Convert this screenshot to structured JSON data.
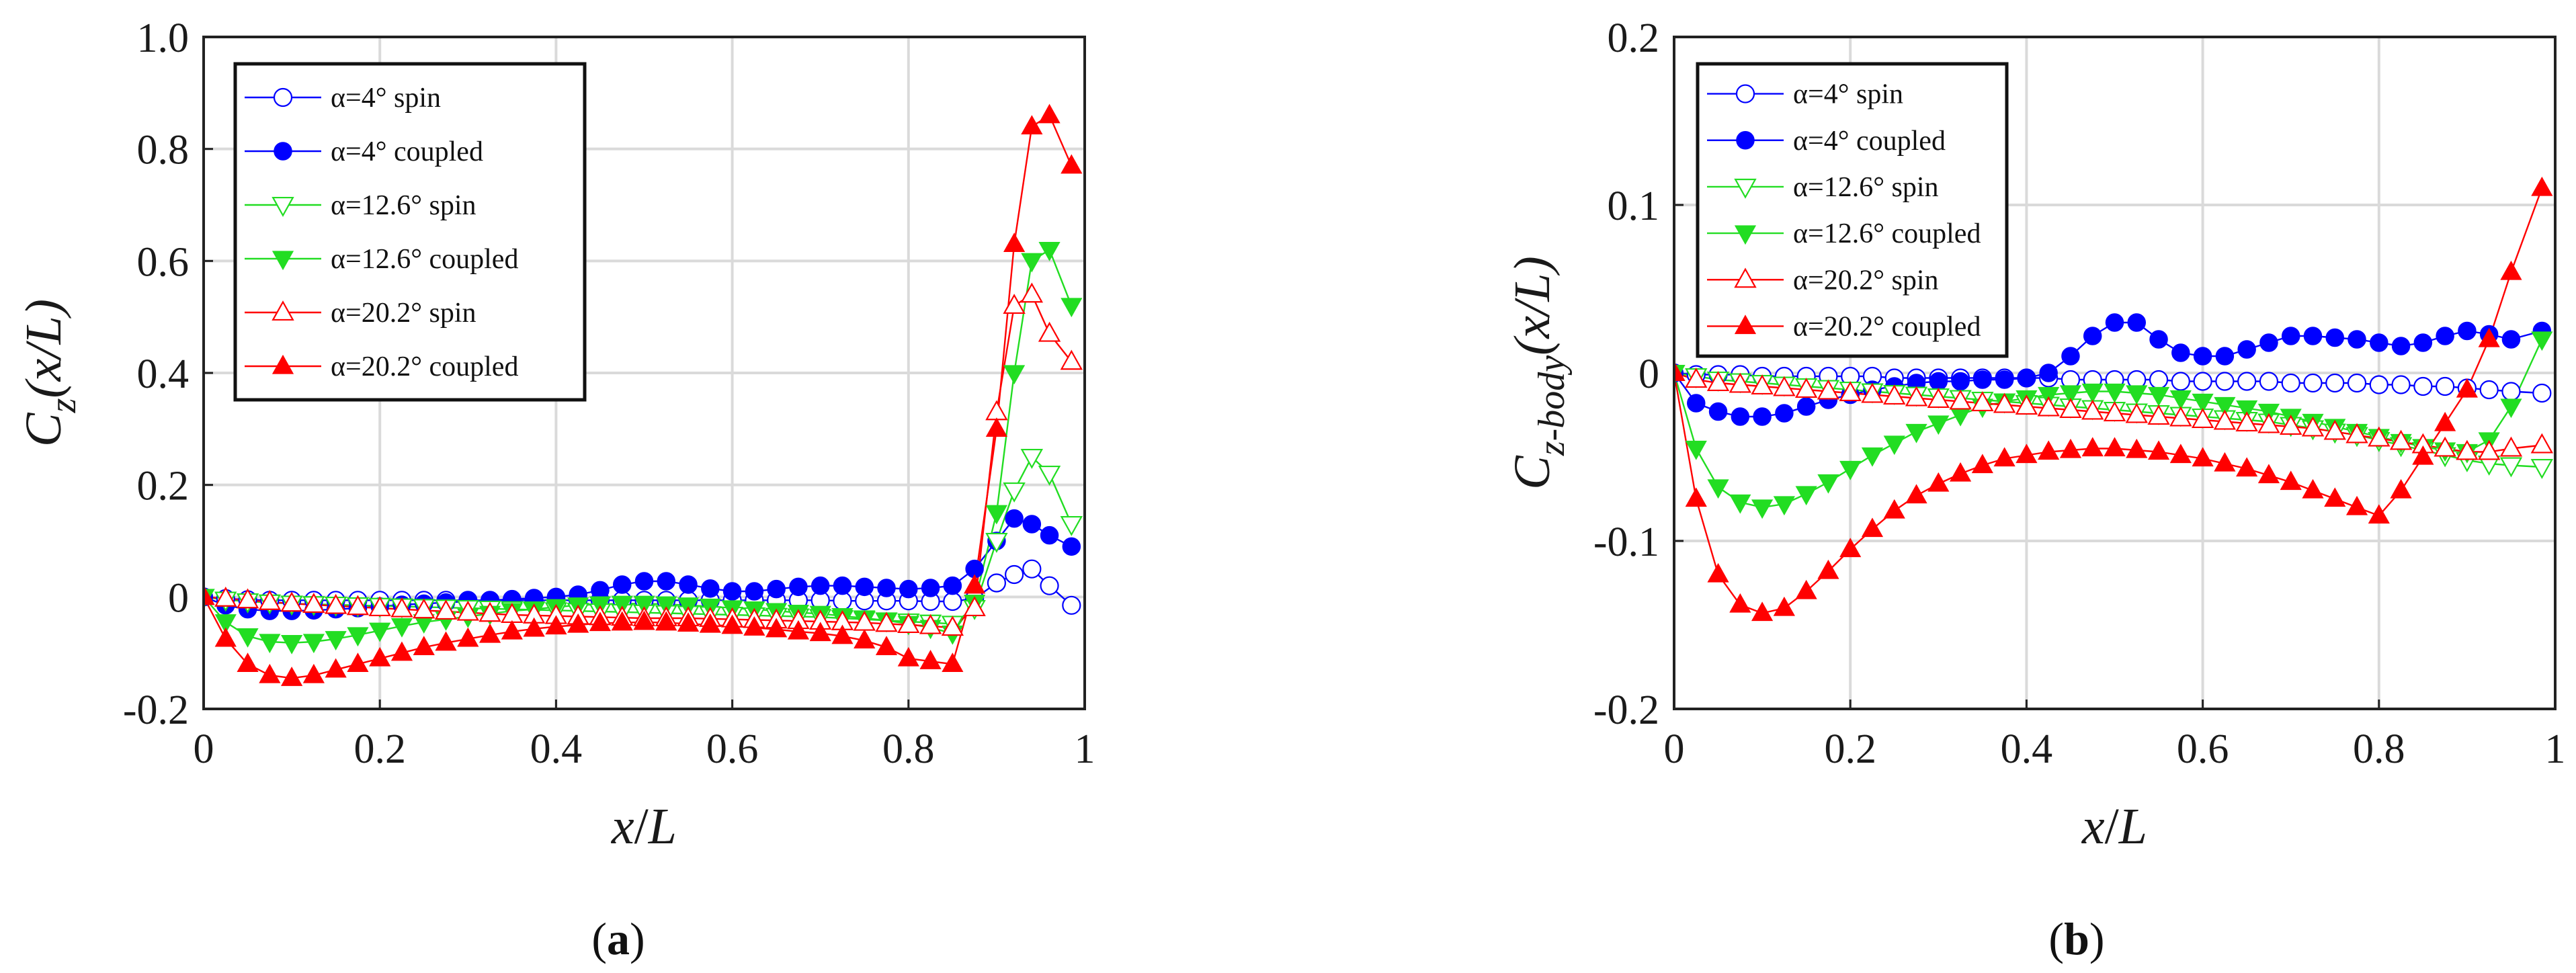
{
  "chart_data": [
    {
      "id": "a",
      "type": "line",
      "caption_letter": "a",
      "xlabel_parts": [
        "x",
        "/",
        "L"
      ],
      "ylabel_parts": {
        "c": "C",
        "sub": "z",
        "arg": "(x/L)"
      },
      "xlim": [
        0,
        1
      ],
      "ylim": [
        -0.2,
        1.0
      ],
      "xticks": [
        0,
        0.2,
        0.4,
        0.6,
        0.8,
        1
      ],
      "xtick_labels": [
        "0",
        "0.2",
        "0.4",
        "0.6",
        "0.8",
        "1"
      ],
      "yticks": [
        -0.2,
        0,
        0.2,
        0.4,
        0.6,
        0.8,
        1.0
      ],
      "ytick_labels": [
        "-0.2",
        "0",
        "0.2",
        "0.4",
        "0.6",
        "0.8",
        "1.0"
      ],
      "grid": true,
      "legend_position": "top-left",
      "x": [
        0,
        0.025,
        0.05,
        0.075,
        0.1,
        0.125,
        0.15,
        0.175,
        0.2,
        0.225,
        0.25,
        0.275,
        0.3,
        0.325,
        0.35,
        0.375,
        0.4,
        0.425,
        0.45,
        0.475,
        0.5,
        0.525,
        0.55,
        0.575,
        0.6,
        0.625,
        0.65,
        0.675,
        0.7,
        0.725,
        0.75,
        0.775,
        0.8,
        0.825,
        0.85,
        0.875,
        0.9,
        0.92,
        0.94,
        0.96,
        0.985
      ],
      "series": [
        {
          "name": "α=4° spin",
          "color": "#0000ff",
          "marker": "circle",
          "filled": false,
          "values": [
            0,
            -0.003,
            -0.005,
            -0.006,
            -0.006,
            -0.006,
            -0.006,
            -0.006,
            -0.006,
            -0.006,
            -0.006,
            -0.006,
            -0.006,
            -0.006,
            -0.006,
            -0.006,
            -0.006,
            -0.006,
            -0.006,
            -0.006,
            -0.006,
            -0.006,
            -0.006,
            -0.006,
            -0.006,
            -0.006,
            -0.006,
            -0.006,
            -0.006,
            -0.007,
            -0.007,
            -0.007,
            -0.007,
            -0.008,
            -0.008,
            -0.003,
            0.025,
            0.04,
            0.05,
            0.02,
            -0.015
          ]
        },
        {
          "name": "α=4° coupled",
          "color": "#0000ff",
          "marker": "circle",
          "filled": true,
          "values": [
            0,
            -0.015,
            -0.022,
            -0.025,
            -0.025,
            -0.024,
            -0.022,
            -0.02,
            -0.017,
            -0.014,
            -0.012,
            -0.01,
            -0.008,
            -0.006,
            -0.004,
            -0.002,
            0.0,
            0.004,
            0.012,
            0.022,
            0.028,
            0.028,
            0.022,
            0.015,
            0.01,
            0.01,
            0.014,
            0.018,
            0.02,
            0.02,
            0.018,
            0.016,
            0.014,
            0.016,
            0.02,
            0.05,
            0.1,
            0.14,
            0.13,
            0.11,
            0.09
          ]
        },
        {
          "name": "α=12.6° spin",
          "color": "#22dd22",
          "marker": "tri-down",
          "filled": false,
          "values": [
            0,
            -0.005,
            -0.008,
            -0.01,
            -0.012,
            -0.013,
            -0.014,
            -0.015,
            -0.016,
            -0.017,
            -0.018,
            -0.019,
            -0.02,
            -0.021,
            -0.022,
            -0.023,
            -0.024,
            -0.025,
            -0.026,
            -0.027,
            -0.028,
            -0.029,
            -0.03,
            -0.031,
            -0.032,
            -0.033,
            -0.034,
            -0.035,
            -0.036,
            -0.038,
            -0.04,
            -0.042,
            -0.044,
            -0.046,
            -0.048,
            -0.02,
            0.1,
            0.19,
            0.25,
            0.22,
            0.13
          ]
        },
        {
          "name": "α=12.6° coupled",
          "color": "#22dd22",
          "marker": "tri-down",
          "filled": true,
          "values": [
            0,
            -0.045,
            -0.07,
            -0.08,
            -0.082,
            -0.08,
            -0.075,
            -0.068,
            -0.06,
            -0.052,
            -0.045,
            -0.04,
            -0.035,
            -0.03,
            -0.025,
            -0.022,
            -0.018,
            -0.015,
            -0.013,
            -0.012,
            -0.012,
            -0.013,
            -0.015,
            -0.017,
            -0.02,
            -0.022,
            -0.025,
            -0.028,
            -0.03,
            -0.034,
            -0.038,
            -0.042,
            -0.048,
            -0.055,
            -0.065,
            -0.01,
            0.15,
            0.4,
            0.6,
            0.62,
            0.52
          ]
        },
        {
          "name": "α=20.2° spin",
          "color": "#ff0000",
          "marker": "tri-up",
          "filled": false,
          "values": [
            0,
            -0.003,
            -0.006,
            -0.009,
            -0.012,
            -0.014,
            -0.016,
            -0.018,
            -0.02,
            -0.022,
            -0.024,
            -0.026,
            -0.028,
            -0.03,
            -0.032,
            -0.033,
            -0.034,
            -0.035,
            -0.036,
            -0.037,
            -0.038,
            -0.038,
            -0.038,
            -0.039,
            -0.04,
            -0.041,
            -0.042,
            -0.043,
            -0.044,
            -0.045,
            -0.046,
            -0.048,
            -0.05,
            -0.052,
            -0.055,
            -0.02,
            0.33,
            0.52,
            0.54,
            0.47,
            0.42
          ]
        },
        {
          "name": "α=20.2° coupled",
          "color": "#ff0000",
          "marker": "tri-up",
          "filled": true,
          "values": [
            0,
            -0.075,
            -0.12,
            -0.14,
            -0.145,
            -0.14,
            -0.13,
            -0.12,
            -0.11,
            -0.1,
            -0.09,
            -0.082,
            -0.075,
            -0.068,
            -0.062,
            -0.057,
            -0.053,
            -0.05,
            -0.047,
            -0.046,
            -0.045,
            -0.046,
            -0.048,
            -0.05,
            -0.052,
            -0.055,
            -0.058,
            -0.062,
            -0.065,
            -0.07,
            -0.078,
            -0.09,
            -0.11,
            -0.115,
            -0.12,
            0.02,
            0.3,
            0.63,
            0.84,
            0.86,
            0.77
          ]
        }
      ]
    },
    {
      "id": "b",
      "type": "line",
      "caption_letter": "b",
      "xlabel_parts": [
        "x",
        "/",
        "L"
      ],
      "ylabel_parts": {
        "c": "C",
        "sub": "z-body",
        "arg": "(x/L)"
      },
      "xlim": [
        0,
        1
      ],
      "ylim": [
        -0.2,
        0.2
      ],
      "xticks": [
        0,
        0.2,
        0.4,
        0.6,
        0.8,
        1
      ],
      "xtick_labels": [
        "0",
        "0.2",
        "0.4",
        "0.6",
        "0.8",
        "1"
      ],
      "yticks": [
        -0.2,
        -0.1,
        0,
        0.1,
        0.2
      ],
      "ytick_labels": [
        "-0.2",
        "-0.1",
        "0",
        "0.1",
        "0.2"
      ],
      "grid": true,
      "legend_position": "top-left",
      "x": [
        0,
        0.025,
        0.05,
        0.075,
        0.1,
        0.125,
        0.15,
        0.175,
        0.2,
        0.225,
        0.25,
        0.275,
        0.3,
        0.325,
        0.35,
        0.375,
        0.4,
        0.425,
        0.45,
        0.475,
        0.5,
        0.525,
        0.55,
        0.575,
        0.6,
        0.625,
        0.65,
        0.675,
        0.7,
        0.725,
        0.75,
        0.775,
        0.8,
        0.825,
        0.85,
        0.875,
        0.9,
        0.925,
        0.95,
        0.985
      ],
      "series": [
        {
          "name": "α=4° spin",
          "color": "#0000ff",
          "marker": "circle",
          "filled": false,
          "values": [
            0,
            -0.001,
            -0.001,
            -0.001,
            -0.002,
            -0.002,
            -0.002,
            -0.002,
            -0.002,
            -0.002,
            -0.003,
            -0.003,
            -0.003,
            -0.003,
            -0.003,
            -0.003,
            -0.003,
            -0.003,
            -0.004,
            -0.004,
            -0.004,
            -0.004,
            -0.004,
            -0.005,
            -0.005,
            -0.005,
            -0.005,
            -0.005,
            -0.006,
            -0.006,
            -0.006,
            -0.006,
            -0.007,
            -0.007,
            -0.008,
            -0.008,
            -0.009,
            -0.01,
            -0.011,
            -0.012
          ]
        },
        {
          "name": "α=4° coupled",
          "color": "#0000ff",
          "marker": "circle",
          "filled": true,
          "values": [
            0,
            -0.018,
            -0.023,
            -0.026,
            -0.026,
            -0.024,
            -0.02,
            -0.016,
            -0.013,
            -0.01,
            -0.008,
            -0.006,
            -0.005,
            -0.005,
            -0.004,
            -0.004,
            -0.003,
            0.0,
            0.01,
            0.022,
            0.03,
            0.03,
            0.02,
            0.012,
            0.01,
            0.01,
            0.014,
            0.018,
            0.022,
            0.022,
            0.021,
            0.02,
            0.018,
            0.016,
            0.018,
            0.022,
            0.025,
            0.023,
            0.02,
            0.025
          ]
        },
        {
          "name": "α=12.6° spin",
          "color": "#22dd22",
          "marker": "tri-down",
          "filled": false,
          "values": [
            0,
            -0.002,
            -0.004,
            -0.005,
            -0.006,
            -0.007,
            -0.008,
            -0.009,
            -0.01,
            -0.011,
            -0.012,
            -0.013,
            -0.014,
            -0.015,
            -0.016,
            -0.017,
            -0.018,
            -0.019,
            -0.02,
            -0.021,
            -0.022,
            -0.023,
            -0.024,
            -0.025,
            -0.026,
            -0.027,
            -0.028,
            -0.029,
            -0.031,
            -0.033,
            -0.035,
            -0.037,
            -0.04,
            -0.043,
            -0.046,
            -0.049,
            -0.052,
            -0.054,
            -0.055,
            -0.056
          ]
        },
        {
          "name": "α=12.6° coupled",
          "color": "#22dd22",
          "marker": "tri-down",
          "filled": true,
          "values": [
            0,
            -0.045,
            -0.068,
            -0.077,
            -0.08,
            -0.078,
            -0.072,
            -0.065,
            -0.057,
            -0.049,
            -0.042,
            -0.035,
            -0.03,
            -0.025,
            -0.02,
            -0.017,
            -0.015,
            -0.013,
            -0.012,
            -0.011,
            -0.011,
            -0.012,
            -0.013,
            -0.015,
            -0.017,
            -0.019,
            -0.021,
            -0.023,
            -0.026,
            -0.029,
            -0.032,
            -0.035,
            -0.038,
            -0.041,
            -0.044,
            -0.046,
            -0.047,
            -0.04,
            -0.02,
            0.02
          ]
        },
        {
          "name": "α=20.2° spin",
          "color": "#ff0000",
          "marker": "tri-up",
          "filled": false,
          "values": [
            0,
            -0.004,
            -0.006,
            -0.007,
            -0.008,
            -0.009,
            -0.01,
            -0.011,
            -0.012,
            -0.013,
            -0.014,
            -0.015,
            -0.016,
            -0.017,
            -0.018,
            -0.019,
            -0.02,
            -0.021,
            -0.022,
            -0.023,
            -0.024,
            -0.025,
            -0.026,
            -0.027,
            -0.028,
            -0.029,
            -0.03,
            -0.031,
            -0.032,
            -0.033,
            -0.035,
            -0.037,
            -0.039,
            -0.041,
            -0.043,
            -0.045,
            -0.047,
            -0.047,
            -0.045,
            -0.043
          ]
        },
        {
          "name": "α=20.2° coupled",
          "color": "#ff0000",
          "marker": "tri-up",
          "filled": true,
          "values": [
            0,
            -0.075,
            -0.12,
            -0.138,
            -0.143,
            -0.14,
            -0.13,
            -0.118,
            -0.105,
            -0.093,
            -0.082,
            -0.073,
            -0.066,
            -0.06,
            -0.055,
            -0.051,
            -0.049,
            -0.047,
            -0.046,
            -0.045,
            -0.045,
            -0.046,
            -0.047,
            -0.049,
            -0.051,
            -0.054,
            -0.057,
            -0.061,
            -0.065,
            -0.07,
            -0.075,
            -0.08,
            -0.085,
            -0.07,
            -0.05,
            -0.03,
            -0.01,
            0.02,
            0.06,
            0.11
          ]
        }
      ]
    }
  ]
}
